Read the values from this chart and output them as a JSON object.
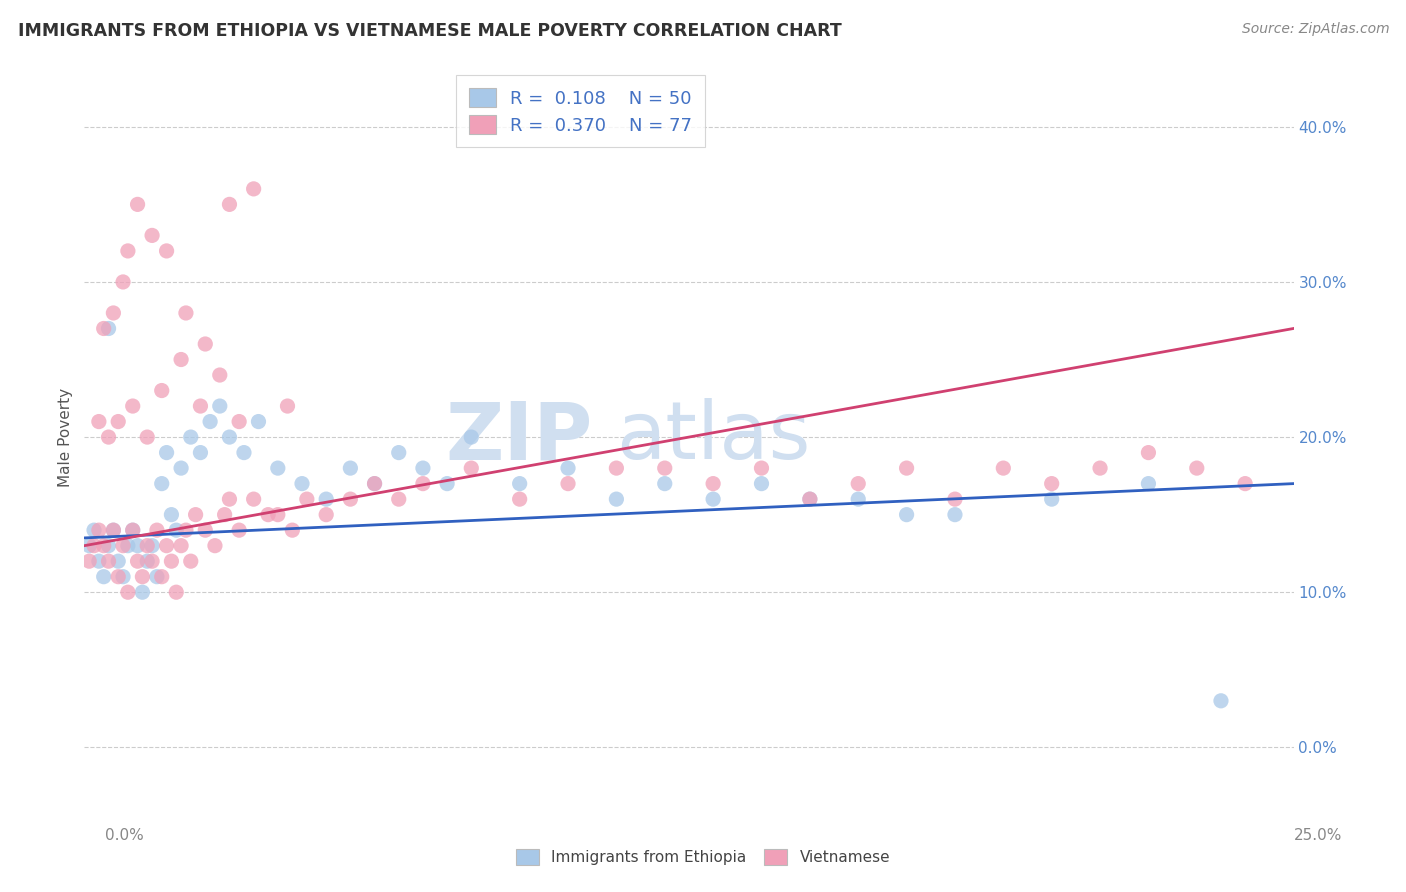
{
  "title": "IMMIGRANTS FROM ETHIOPIA VS VIETNAMESE MALE POVERTY CORRELATION CHART",
  "source": "Source: ZipAtlas.com",
  "ylabel": "Male Poverty",
  "xlim": [
    0,
    25
  ],
  "ylim": [
    -3,
    43
  ],
  "yticks": [
    0,
    10,
    20,
    30,
    40
  ],
  "ytick_labels": [
    "0.0%",
    "10.0%",
    "20.0%",
    "30.0%",
    "40.0%"
  ],
  "color_blue": "#a8c8e8",
  "color_pink": "#f0a0b8",
  "color_blue_line": "#3060c0",
  "color_pink_line": "#d04070",
  "watermark_color": "#d0dff0",
  "ethiopia_x": [
    0.1,
    0.2,
    0.3,
    0.4,
    0.5,
    0.6,
    0.7,
    0.8,
    0.9,
    1.0,
    1.1,
    1.2,
    1.3,
    1.4,
    1.5,
    1.6,
    1.7,
    1.8,
    1.9,
    2.0,
    2.2,
    2.4,
    2.6,
    2.8,
    3.0,
    3.3,
    3.6,
    4.0,
    4.5,
    5.0,
    5.5,
    6.0,
    6.5,
    7.0,
    7.5,
    8.0,
    9.0,
    10.0,
    11.0,
    12.0,
    13.0,
    14.0,
    15.0,
    16.0,
    17.0,
    18.0,
    20.0,
    22.0,
    23.5,
    0.5
  ],
  "ethiopia_y": [
    13,
    14,
    12,
    11,
    13,
    14,
    12,
    11,
    13,
    14,
    13,
    10,
    12,
    13,
    11,
    17,
    19,
    15,
    14,
    18,
    20,
    19,
    21,
    22,
    20,
    19,
    21,
    18,
    17,
    16,
    18,
    17,
    19,
    18,
    17,
    20,
    17,
    18,
    16,
    17,
    16,
    17,
    16,
    16,
    15,
    15,
    16,
    17,
    3,
    27
  ],
  "vietnamese_x": [
    0.1,
    0.2,
    0.3,
    0.4,
    0.5,
    0.6,
    0.7,
    0.8,
    0.9,
    1.0,
    1.1,
    1.2,
    1.3,
    1.4,
    1.5,
    1.6,
    1.7,
    1.8,
    1.9,
    2.0,
    2.1,
    2.2,
    2.3,
    2.5,
    2.7,
    2.9,
    3.0,
    3.2,
    3.5,
    3.8,
    4.0,
    4.3,
    4.6,
    5.0,
    5.5,
    6.0,
    6.5,
    7.0,
    8.0,
    9.0,
    10.0,
    11.0,
    12.0,
    13.0,
    14.0,
    15.0,
    16.0,
    17.0,
    18.0,
    19.0,
    20.0,
    21.0,
    22.0,
    23.0,
    24.0,
    0.3,
    0.5,
    0.7,
    1.0,
    1.3,
    1.6,
    2.0,
    2.4,
    2.8,
    3.2,
    0.4,
    0.6,
    0.8,
    0.9,
    1.1,
    1.4,
    1.7,
    2.1,
    2.5,
    3.0,
    3.5,
    4.2
  ],
  "vietnamese_y": [
    12,
    13,
    14,
    13,
    12,
    14,
    11,
    13,
    10,
    14,
    12,
    11,
    13,
    12,
    14,
    11,
    13,
    12,
    10,
    13,
    14,
    12,
    15,
    14,
    13,
    15,
    16,
    14,
    16,
    15,
    15,
    14,
    16,
    15,
    16,
    17,
    16,
    17,
    18,
    16,
    17,
    18,
    18,
    17,
    18,
    16,
    17,
    18,
    16,
    18,
    17,
    18,
    19,
    18,
    17,
    21,
    20,
    21,
    22,
    20,
    23,
    25,
    22,
    24,
    21,
    27,
    28,
    30,
    32,
    35,
    33,
    32,
    28,
    26,
    35,
    36,
    22
  ],
  "reg_eth_x0": 0,
  "reg_eth_y0": 13.5,
  "reg_eth_x1": 25,
  "reg_eth_y1": 17.0,
  "reg_viet_x0": 0,
  "reg_viet_y0": 13.0,
  "reg_viet_x1": 25,
  "reg_viet_y1": 27.0
}
